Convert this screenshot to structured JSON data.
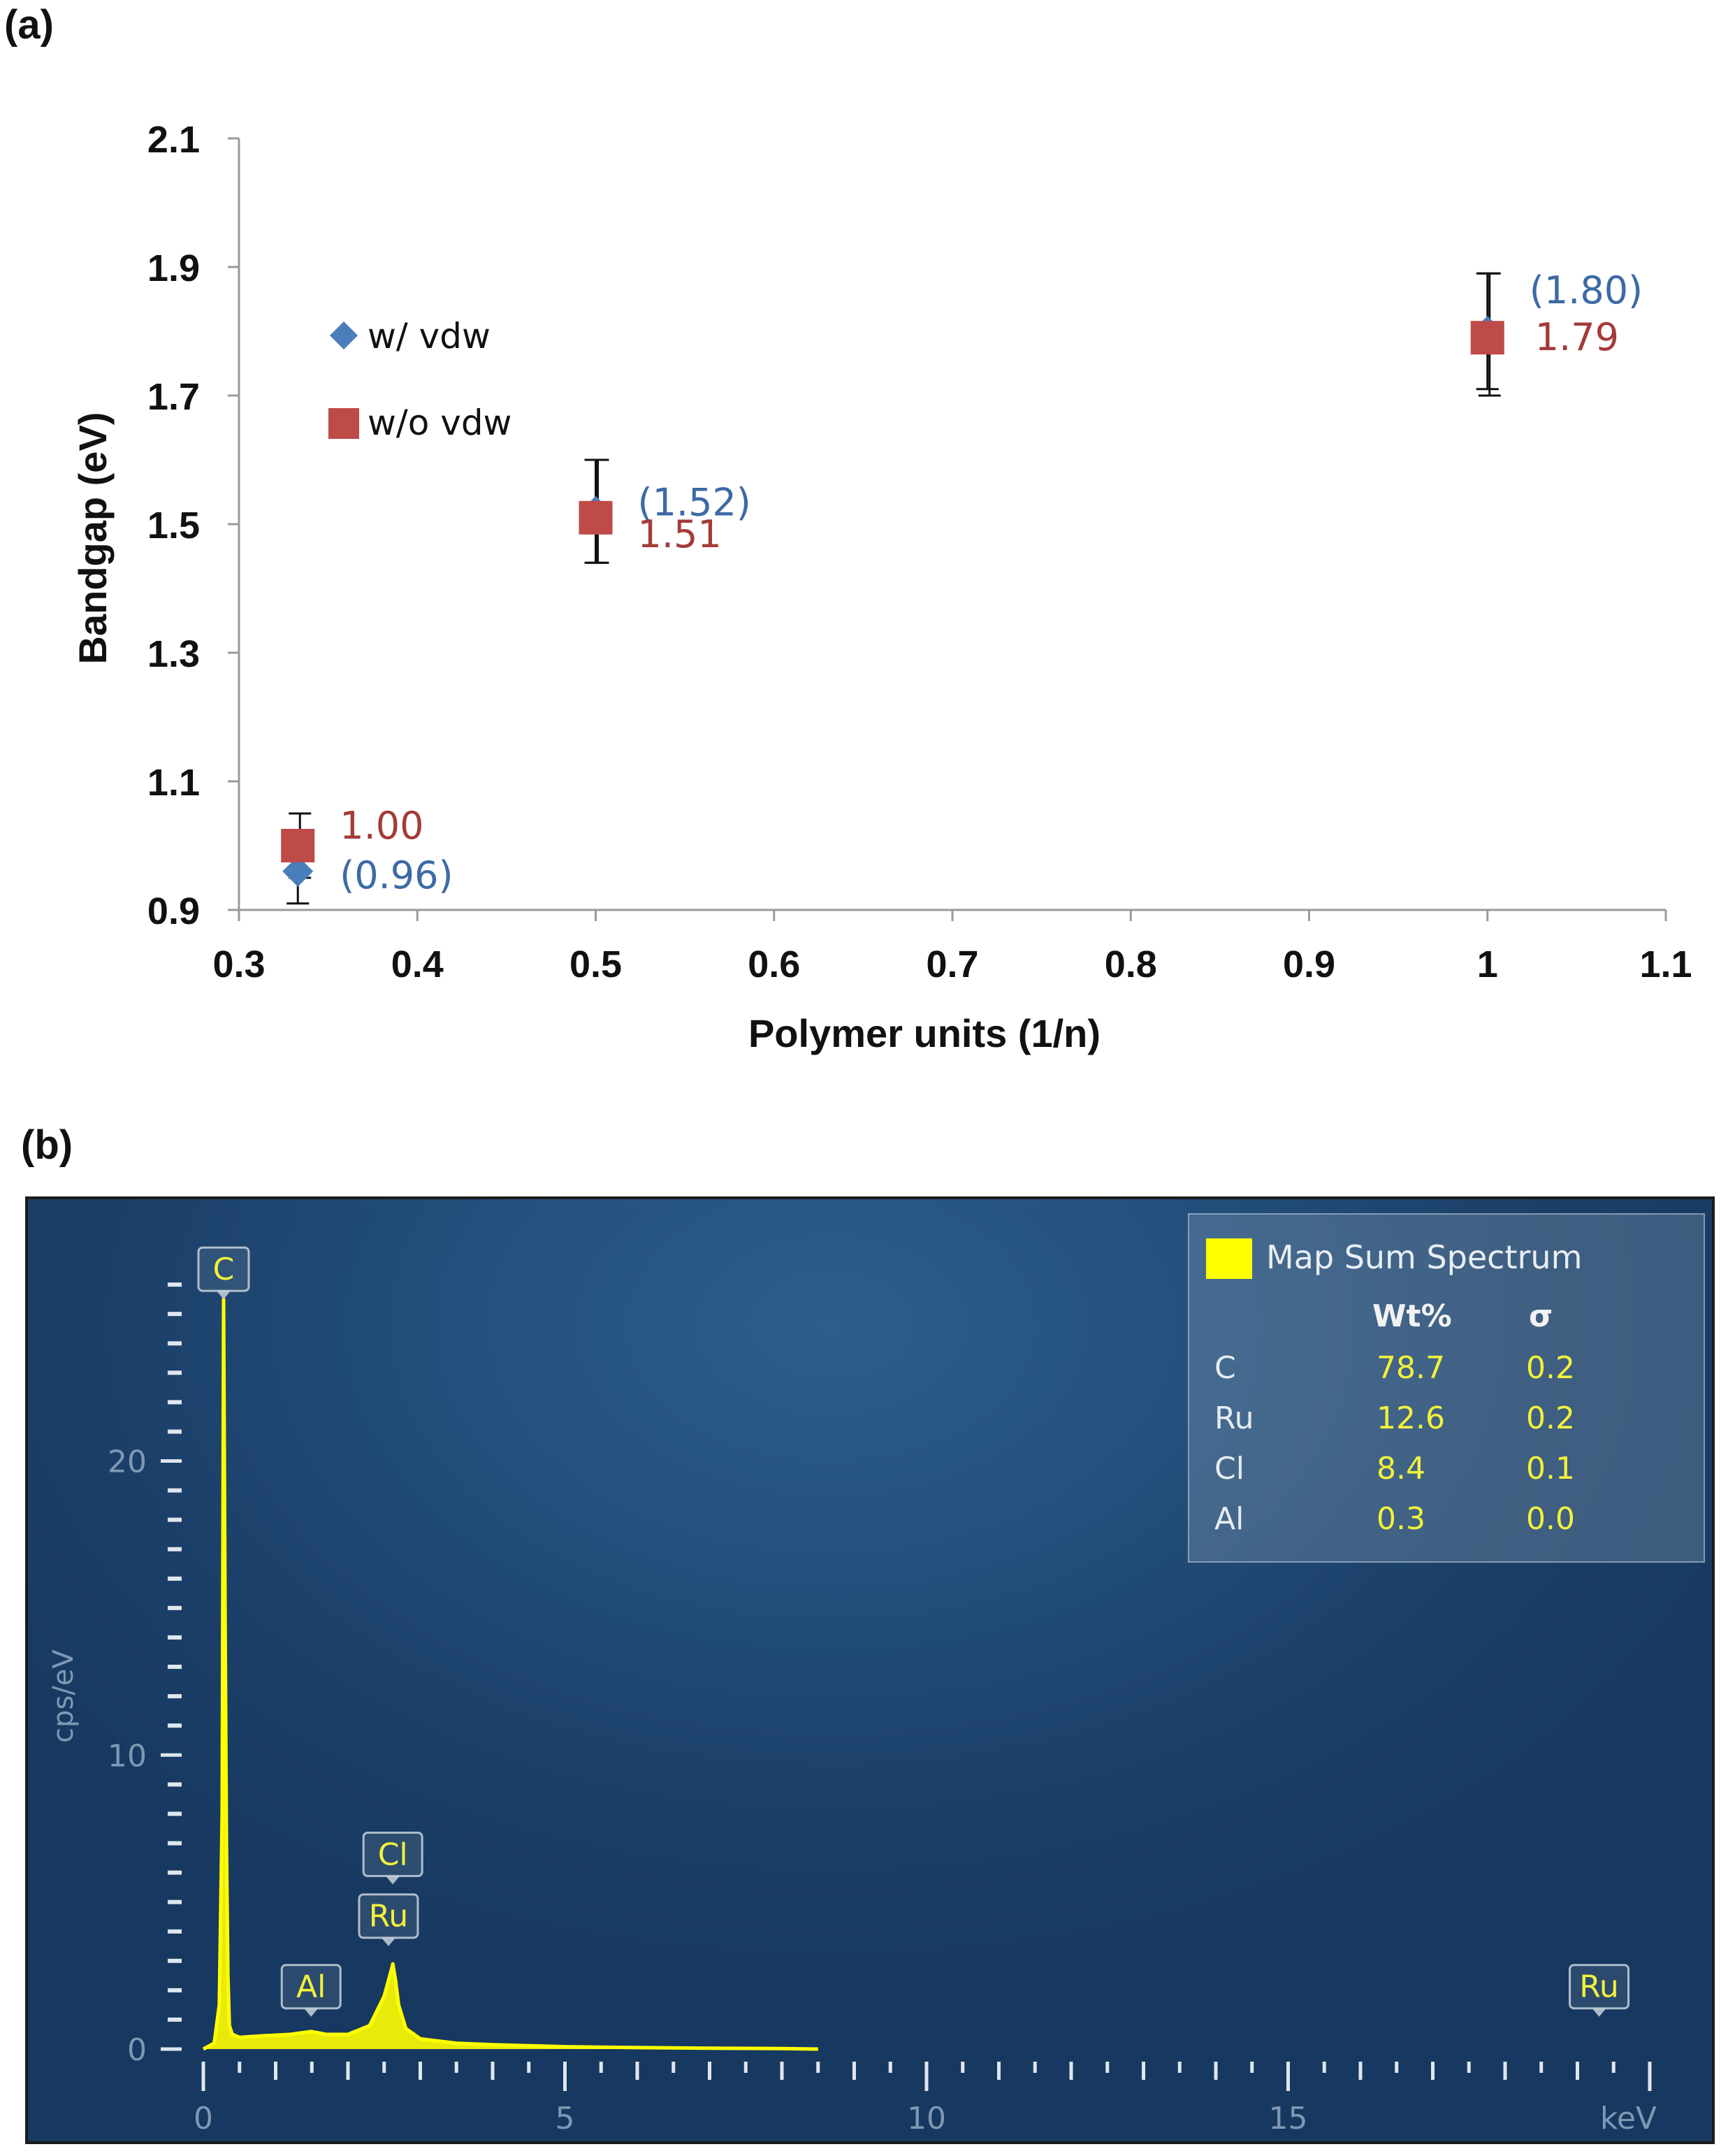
{
  "panel_a": {
    "label": "(a)",
    "chart_data": {
      "type": "scatter",
      "xlabel": "Polymer units (1/n)",
      "ylabel": "Bandgap (eV)",
      "xlim": [
        0.3,
        1.1
      ],
      "ylim": [
        0.9,
        2.1
      ],
      "x_ticks": [
        "0.3",
        "0.4",
        "0.5",
        "0.6",
        "0.7",
        "0.8",
        "0.9",
        "1",
        "1.1"
      ],
      "y_ticks": [
        "0.9",
        "1.1",
        "1.3",
        "1.5",
        "1.7",
        "1.9",
        "2.1"
      ],
      "series": [
        {
          "name": "w/ vdw",
          "marker": "diamond",
          "color": "#4a7ebb",
          "x": [
            0.333,
            0.5,
            1.0
          ],
          "y": [
            0.96,
            1.52,
            1.8
          ],
          "labels": [
            "(0.96)",
            "(1.52)",
            "(1.80)"
          ],
          "err_low": [
            0.05,
            0.08,
            0.09
          ],
          "err_high": [
            0.05,
            0.08,
            0.09
          ]
        },
        {
          "name": "w/o vdw",
          "marker": "square",
          "color": "#be4b48",
          "x": [
            0.333,
            0.5,
            1.0
          ],
          "y": [
            1.0,
            1.51,
            1.79
          ],
          "labels": [
            "1.00",
            "1.51",
            "1.79"
          ],
          "err_low": [
            0.05,
            0.07,
            0.09
          ],
          "err_high": [
            0.05,
            0.09,
            0.1
          ]
        }
      ]
    }
  },
  "panel_b": {
    "label": "(b)",
    "chart_data": {
      "type": "line",
      "xlabel": "keV",
      "ylabel": "cps/eV",
      "xlim": [
        0,
        20
      ],
      "ylim": [
        0,
        27
      ],
      "x_ticks": [
        "0",
        "5",
        "10",
        "15"
      ],
      "y_ticks": [
        "0",
        "10",
        "20"
      ],
      "series": [
        {
          "name": "Map Sum Spectrum",
          "color": "#ffff00",
          "x": [
            0,
            0.15,
            0.22,
            0.26,
            0.28,
            0.3,
            0.32,
            0.34,
            0.36,
            0.4,
            0.5,
            0.8,
            1.2,
            1.49,
            1.7,
            2.0,
            2.3,
            2.5,
            2.6,
            2.62,
            2.66,
            2.7,
            2.8,
            3.0,
            3.5,
            4.0,
            5.0,
            6.0,
            7.0,
            8.0,
            8.5
          ],
          "y": [
            0,
            0.2,
            1.5,
            8.0,
            25.5,
            15.0,
            7.0,
            2.5,
            0.8,
            0.5,
            0.4,
            0.45,
            0.5,
            0.6,
            0.5,
            0.5,
            0.8,
            1.8,
            2.7,
            2.9,
            2.3,
            1.5,
            0.7,
            0.35,
            0.2,
            0.15,
            0.08,
            0.05,
            0.03,
            0.02,
            0.0
          ]
        }
      ],
      "peak_labels": [
        {
          "text": "C",
          "x": 0.28,
          "y": 25.5
        },
        {
          "text": "Al",
          "x": 1.49,
          "y": 1.1
        },
        {
          "text": "Ru",
          "x": 2.56,
          "y": 3.5
        },
        {
          "text": "Cl",
          "x": 2.62,
          "y": 5.6
        },
        {
          "text": "Ru",
          "x": 19.3,
          "y": 1.1
        }
      ],
      "legend": {
        "title": "Map Sum Spectrum",
        "swatch_color": "#ffff00",
        "col_wt": "Wt%",
        "col_sigma": "σ",
        "rows": [
          {
            "element": "C",
            "wt": "78.7",
            "sigma": "0.2"
          },
          {
            "element": "Ru",
            "wt": "12.6",
            "sigma": "0.2"
          },
          {
            "element": "Cl",
            "wt": "8.4",
            "sigma": "0.1"
          },
          {
            "element": "Al",
            "wt": "0.3",
            "sigma": "0.0"
          }
        ]
      }
    }
  }
}
